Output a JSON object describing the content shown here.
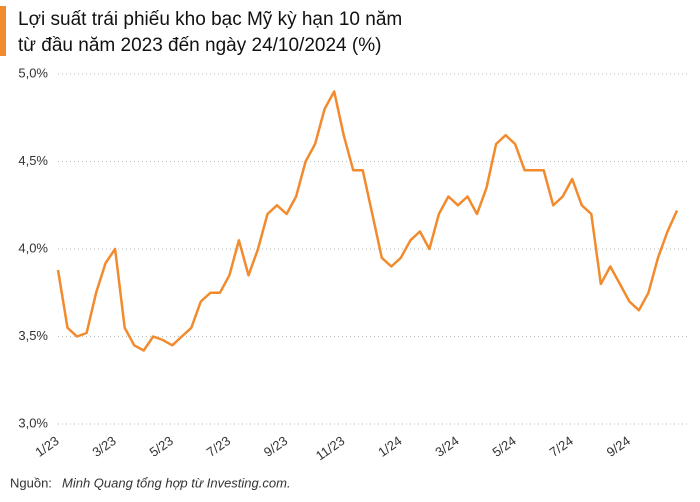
{
  "chart_data": {
    "type": "line",
    "title": [
      "Lợi suất trái phiếu kho bạc Mỹ kỳ hạn 10 năm",
      "từ đầu năm 2023 đến ngày 24/10/2024 (%)"
    ],
    "source_label": "Nguồn:",
    "source": "Minh Quang tổng hợp từ Investing.com.",
    "categories": [
      "1/23",
      null,
      null,
      null,
      null,
      null,
      "3/23",
      null,
      null,
      null,
      null,
      null,
      "5/23",
      null,
      null,
      null,
      null,
      null,
      "7/23",
      null,
      null,
      null,
      null,
      null,
      "9/23",
      null,
      null,
      null,
      null,
      null,
      "11/23",
      null,
      null,
      null,
      null,
      null,
      "1/24",
      null,
      null,
      null,
      null,
      null,
      "3/24",
      null,
      null,
      null,
      null,
      null,
      "5/24",
      null,
      null,
      null,
      null,
      null,
      "7/24",
      null,
      null,
      null,
      null,
      null,
      "9/24",
      null,
      null,
      null,
      null,
      null
    ],
    "series": [
      {
        "name": "Lợi suất",
        "color": "#f28a2e",
        "values": [
          3.88,
          3.55,
          3.5,
          3.52,
          3.75,
          3.92,
          4.0,
          3.55,
          3.45,
          3.42,
          3.5,
          3.48,
          3.45,
          3.5,
          3.55,
          3.7,
          3.75,
          3.75,
          3.85,
          4.05,
          3.85,
          4.0,
          4.2,
          4.25,
          4.2,
          4.3,
          4.5,
          4.6,
          4.8,
          4.9,
          4.65,
          4.45,
          4.45,
          4.2,
          3.95,
          3.9,
          3.95,
          4.05,
          4.1,
          4.0,
          4.2,
          4.3,
          4.25,
          4.3,
          4.2,
          4.35,
          4.6,
          4.65,
          4.6,
          4.45,
          4.45,
          4.45,
          4.25,
          4.3,
          4.4,
          4.25,
          4.2,
          3.8,
          3.9,
          3.8,
          3.7,
          3.65,
          3.75,
          3.95,
          4.1,
          4.22
        ]
      }
    ],
    "ylim": [
      3.0,
      5.0
    ],
    "yticks": [
      {
        "value": 3.0,
        "label": "3,0%"
      },
      {
        "value": 3.5,
        "label": "3,5%"
      },
      {
        "value": 4.0,
        "label": "4,0%"
      },
      {
        "value": 4.5,
        "label": "4,5%"
      },
      {
        "value": 5.0,
        "label": "5,0%"
      }
    ],
    "grid": true
  }
}
